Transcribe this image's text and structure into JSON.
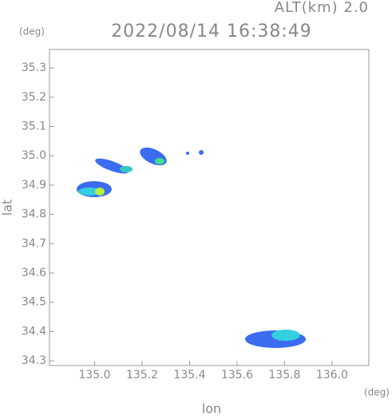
{
  "chart_data": {
    "type": "map",
    "header": "ALT(km) 2.0",
    "title": "2022/08/14 16:38:49",
    "y_unit": "(deg)",
    "x_unit": "(deg)",
    "ylabel": "lat",
    "xlabel": "lon",
    "xlim": [
      134.81,
      136.155
    ],
    "ylim": [
      34.284,
      35.363
    ],
    "xticks": [
      {
        "value": 135,
        "label": "135.0"
      },
      135.2,
      135.4,
      135.6,
      135.8,
      {
        "value": 136,
        "label": "136.0"
      }
    ],
    "yticks": [
      34.3,
      34.4,
      34.5,
      34.6,
      34.7,
      34.8,
      34.9,
      {
        "value": 35,
        "label": "35.0"
      },
      35.1,
      35.2,
      35.3
    ]
  }
}
